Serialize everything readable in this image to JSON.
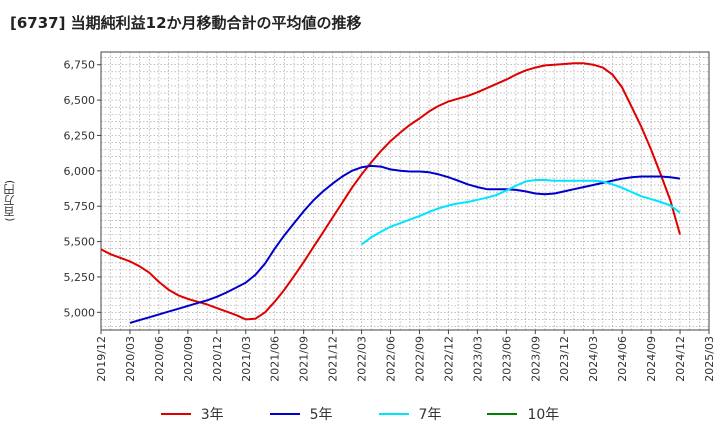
{
  "title": "[6737]  当期純利益12か月移動合計の平均値の推移",
  "chart_data": {
    "type": "line",
    "ylabel": "(百万円)",
    "ylim": [
      4875,
      6840
    ],
    "yticks": [
      5000,
      5250,
      5500,
      5750,
      6000,
      6250,
      6500,
      6750
    ],
    "ytick_labels": [
      "5,000",
      "5,250",
      "5,500",
      "5,750",
      "6,000",
      "6,250",
      "6,500",
      "6,750"
    ],
    "xticks": [
      "2019/12",
      "2020/03",
      "2020/06",
      "2020/09",
      "2020/12",
      "2021/03",
      "2021/06",
      "2021/09",
      "2021/12",
      "2022/03",
      "2022/06",
      "2022/09",
      "2022/12",
      "2023/03",
      "2023/06",
      "2023/09",
      "2023/12",
      "2024/03",
      "2024/06",
      "2024/09",
      "2024/12",
      "2025/03"
    ],
    "grid": true,
    "legend_position": "bottom",
    "series": [
      {
        "name": "3年",
        "color": "#e00000",
        "x": [
          "2019/12",
          "2020/01",
          "2020/02",
          "2020/03",
          "2020/04",
          "2020/05",
          "2020/06",
          "2020/07",
          "2020/08",
          "2020/09",
          "2020/10",
          "2020/11",
          "2020/12",
          "2021/01",
          "2021/02",
          "2021/03",
          "2021/04",
          "2021/05",
          "2021/06",
          "2021/07",
          "2021/08",
          "2021/09",
          "2021/10",
          "2021/11",
          "2021/12",
          "2022/01",
          "2022/02",
          "2022/03",
          "2022/04",
          "2022/05",
          "2022/06",
          "2022/07",
          "2022/08",
          "2022/09",
          "2022/10",
          "2022/11",
          "2022/12",
          "2023/01",
          "2023/02",
          "2023/03",
          "2023/04",
          "2023/05",
          "2023/06",
          "2023/07",
          "2023/08",
          "2023/09",
          "2023/10",
          "2023/11",
          "2023/12",
          "2024/01",
          "2024/02",
          "2024/03",
          "2024/04",
          "2024/05",
          "2024/06",
          "2024/07",
          "2024/08",
          "2024/09",
          "2024/10",
          "2024/11",
          "2024/12"
        ],
        "values": [
          5445,
          5410,
          5385,
          5360,
          5325,
          5280,
          5215,
          5160,
          5120,
          5095,
          5075,
          5055,
          5030,
          5005,
          4980,
          4950,
          4955,
          5000,
          5075,
          5160,
          5255,
          5355,
          5460,
          5565,
          5670,
          5775,
          5880,
          5975,
          6060,
          6140,
          6210,
          6270,
          6325,
          6370,
          6420,
          6460,
          6490,
          6510,
          6530,
          6555,
          6585,
          6615,
          6645,
          6680,
          6710,
          6730,
          6745,
          6750,
          6755,
          6760,
          6760,
          6750,
          6730,
          6680,
          6590,
          6450,
          6310,
          6150,
          5975,
          5790,
          5550
        ]
      },
      {
        "name": "5年",
        "color": "#0000cc",
        "x": [
          "2020/03",
          "2020/04",
          "2020/05",
          "2020/06",
          "2020/07",
          "2020/08",
          "2020/09",
          "2020/10",
          "2020/11",
          "2020/12",
          "2021/01",
          "2021/02",
          "2021/03",
          "2021/04",
          "2021/05",
          "2021/06",
          "2021/07",
          "2021/08",
          "2021/09",
          "2021/10",
          "2021/11",
          "2021/12",
          "2022/01",
          "2022/02",
          "2022/03",
          "2022/04",
          "2022/05",
          "2022/06",
          "2022/07",
          "2022/08",
          "2022/09",
          "2022/10",
          "2022/11",
          "2022/12",
          "2023/01",
          "2023/02",
          "2023/03",
          "2023/04",
          "2023/05",
          "2023/06",
          "2023/07",
          "2023/08",
          "2023/09",
          "2023/10",
          "2023/11",
          "2023/12",
          "2024/01",
          "2024/02",
          "2024/03",
          "2024/04",
          "2024/05",
          "2024/06",
          "2024/07",
          "2024/08",
          "2024/09",
          "2024/10",
          "2024/11",
          "2024/12"
        ],
        "values": [
          4925,
          4945,
          4965,
          4985,
          5005,
          5025,
          5045,
          5065,
          5085,
          5110,
          5140,
          5175,
          5210,
          5265,
          5345,
          5450,
          5545,
          5630,
          5715,
          5790,
          5855,
          5910,
          5960,
          6000,
          6025,
          6035,
          6030,
          6010,
          6000,
          5995,
          5995,
          5990,
          5975,
          5955,
          5930,
          5905,
          5885,
          5870,
          5870,
          5870,
          5865,
          5855,
          5840,
          5835,
          5840,
          5855,
          5870,
          5885,
          5900,
          5915,
          5930,
          5945,
          5955,
          5960,
          5960,
          5960,
          5955,
          5945
        ]
      },
      {
        "name": "7年",
        "color": "#00e5ff",
        "x": [
          "2022/03",
          "2022/04",
          "2022/05",
          "2022/06",
          "2022/07",
          "2022/08",
          "2022/09",
          "2022/10",
          "2022/11",
          "2022/12",
          "2023/01",
          "2023/02",
          "2023/03",
          "2023/04",
          "2023/05",
          "2023/06",
          "2023/07",
          "2023/08",
          "2023/09",
          "2023/10",
          "2023/11",
          "2023/12",
          "2024/01",
          "2024/02",
          "2024/03",
          "2024/04",
          "2024/05",
          "2024/06",
          "2024/07",
          "2024/08",
          "2024/09",
          "2024/10",
          "2024/11",
          "2024/12"
        ],
        "values": [
          5480,
          5530,
          5570,
          5605,
          5630,
          5655,
          5680,
          5710,
          5735,
          5755,
          5770,
          5780,
          5795,
          5810,
          5830,
          5860,
          5895,
          5925,
          5935,
          5935,
          5930,
          5930,
          5930,
          5930,
          5930,
          5925,
          5905,
          5880,
          5850,
          5820,
          5800,
          5780,
          5755,
          5705
        ]
      },
      {
        "name": "10年",
        "color": "#008000",
        "x": [],
        "values": []
      }
    ]
  }
}
